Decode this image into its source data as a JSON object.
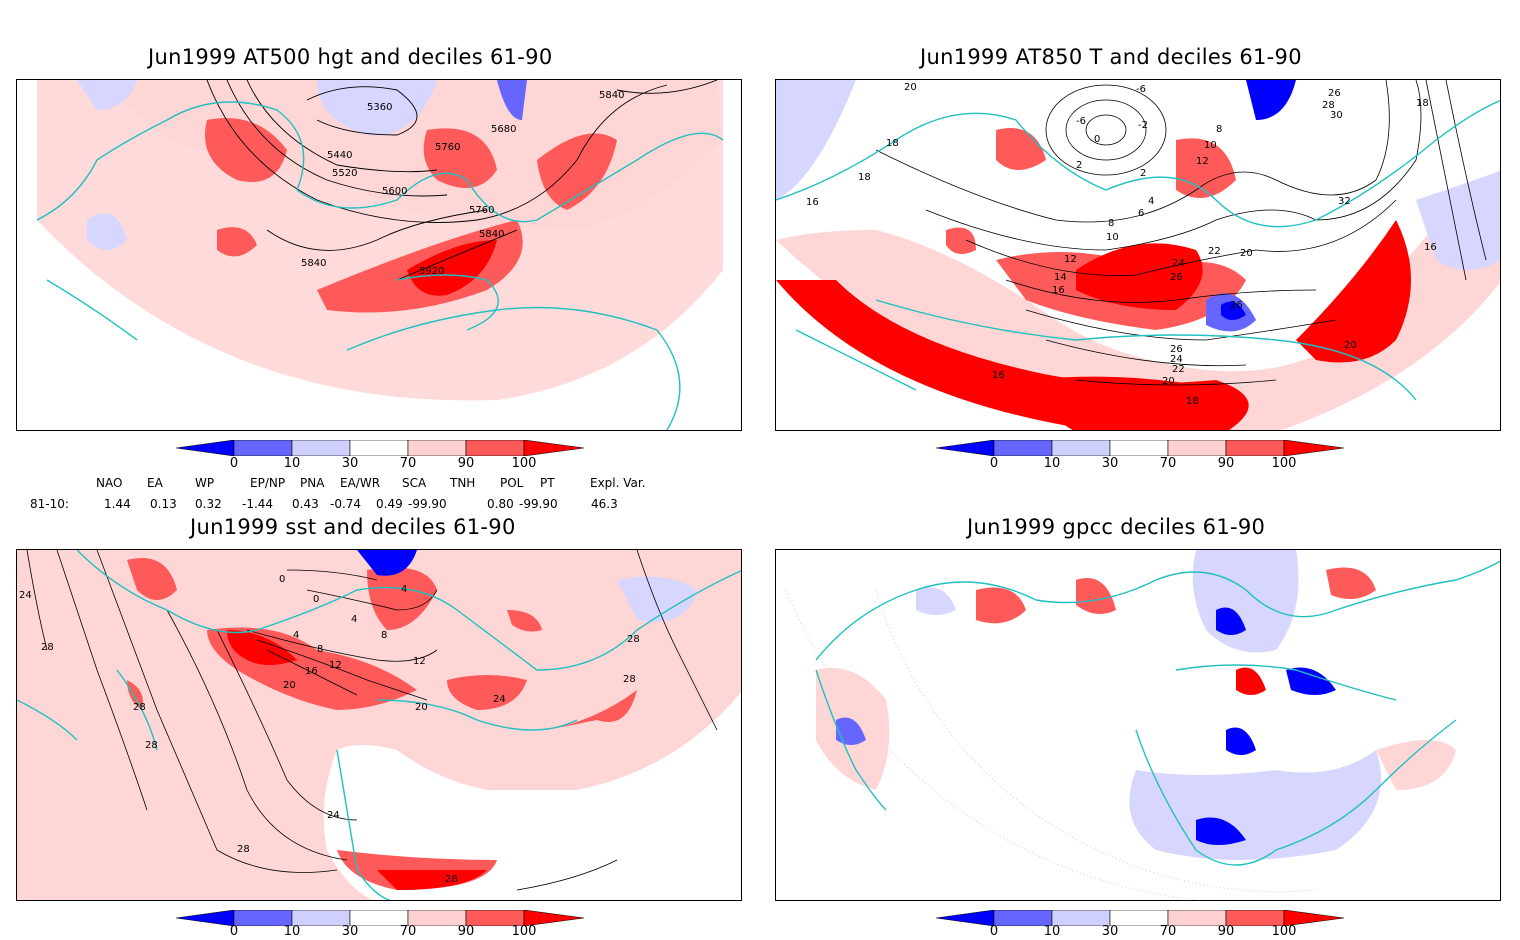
{
  "panels": [
    {
      "id": "p1",
      "title": "Jun1999 AT500 hgt and deciles 61-90",
      "contour_labels": [
        "5360",
        "5440",
        "5520",
        "5600",
        "5680",
        "5760",
        "5760",
        "5840",
        "5840",
        "5840",
        "5920"
      ]
    },
    {
      "id": "p2",
      "title": "Jun1999 AT850 T and deciles 61-90",
      "contour_labels": [
        "20",
        "18",
        "18",
        "16",
        "-6",
        "-6",
        "-2",
        "2",
        "0",
        "2",
        "8",
        "10",
        "12",
        "4",
        "6",
        "8",
        "10",
        "12",
        "14",
        "16",
        "22",
        "24",
        "26",
        "20",
        "26",
        "32",
        "28",
        "30",
        "26",
        "18",
        "16",
        "26",
        "24",
        "22",
        "20",
        "18",
        "16",
        "20"
      ]
    },
    {
      "id": "p3",
      "title": "Jun1999 sst and deciles 61-90",
      "contour_labels": [
        "24",
        "28",
        "28",
        "28",
        "0",
        "0",
        "4",
        "4",
        "4",
        "8",
        "8",
        "12",
        "12",
        "16",
        "20",
        "20",
        "24",
        "28",
        "28",
        "24",
        "28",
        "28"
      ]
    },
    {
      "id": "p4",
      "title": "Jun1999 gpcc deciles 61-90",
      "contour_labels": []
    }
  ],
  "colorbar": {
    "labels": [
      "0",
      "10",
      "30",
      "70",
      "90",
      "100"
    ],
    "colors": [
      "#0000ff",
      "#6666ff",
      "#d0d0ff",
      "#ffffff",
      "#ffd0d0",
      "#ff5a5a",
      "#ff0000"
    ]
  },
  "indices": {
    "headers": [
      "NAO",
      "EA",
      "WP",
      "EP/NP",
      "PNA",
      "EA/WR",
      "SCA",
      "TNH",
      "POL",
      "PT",
      "Expl. Var."
    ],
    "row_label": "81-10:",
    "values": [
      "1.44",
      "0.13",
      "0.32",
      "-1.44",
      "0.43",
      "-0.74",
      "0.49",
      "-99.90",
      "0.80",
      "-99.90",
      "46.3"
    ]
  }
}
